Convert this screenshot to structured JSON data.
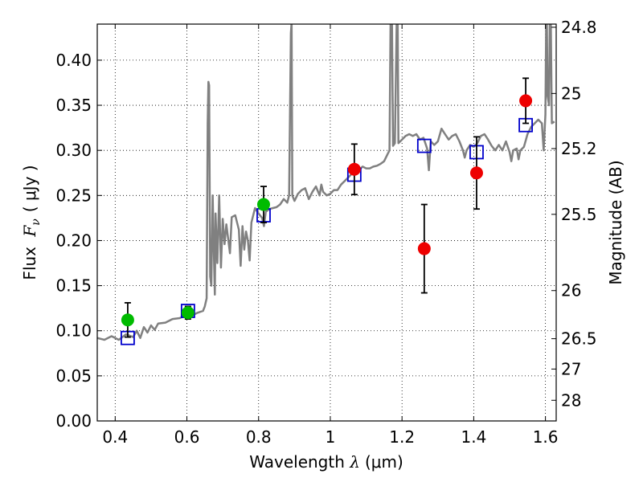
{
  "chart_data": {
    "type": "scatter",
    "xlabel": "Wavelength  λ (μm)",
    "ylabel": "Flux  Fν  ( μJy )",
    "ylabel_parts": {
      "prefix": "Flux ",
      "var_main": "F",
      "var_sub": "ν",
      "units": "( μJy )"
    },
    "xlabel_parts": {
      "prefix": "Wavelength  ",
      "var": "λ",
      "units": "(μm)"
    },
    "y2label": "Magnitude (AB)",
    "xlim": [
      0.35,
      1.63
    ],
    "ylim": [
      0.0,
      0.44
    ],
    "grid": true,
    "x_ticks": [
      {
        "value": 0.4,
        "label": "0.4"
      },
      {
        "value": 0.6,
        "label": "0.6"
      },
      {
        "value": 0.8,
        "label": "0.8"
      },
      {
        "value": 1.0,
        "label": "1"
      },
      {
        "value": 1.2,
        "label": "1.2"
      },
      {
        "value": 1.4,
        "label": "1.4"
      },
      {
        "value": 1.6,
        "label": "1.6"
      }
    ],
    "y_ticks": [
      {
        "value": 0.0,
        "label": "0.00"
      },
      {
        "value": 0.05,
        "label": "0.05"
      },
      {
        "value": 0.1,
        "label": "0.10"
      },
      {
        "value": 0.15,
        "label": "0.15"
      },
      {
        "value": 0.2,
        "label": "0.20"
      },
      {
        "value": 0.25,
        "label": "0.25"
      },
      {
        "value": 0.3,
        "label": "0.30"
      },
      {
        "value": 0.35,
        "label": "0.35"
      },
      {
        "value": 0.4,
        "label": "0.40"
      }
    ],
    "y2_ticks": [
      {
        "mag": 24.8,
        "label": "24.8"
      },
      {
        "mag": 25.0,
        "label": "25"
      },
      {
        "mag": 25.2,
        "label": "25.2"
      },
      {
        "mag": 25.5,
        "label": "25.5"
      },
      {
        "mag": 26.0,
        "label": "26"
      },
      {
        "mag": 26.5,
        "label": "26.5"
      },
      {
        "mag": 27.0,
        "label": "27"
      },
      {
        "mag": 28.0,
        "label": "28"
      }
    ],
    "series": [
      {
        "kind": "line",
        "color": "#808080",
        "points": [
          [
            0.35,
            0.092
          ],
          [
            0.37,
            0.09
          ],
          [
            0.39,
            0.094
          ],
          [
            0.41,
            0.09
          ],
          [
            0.43,
            0.096
          ],
          [
            0.45,
            0.093
          ],
          [
            0.46,
            0.1
          ],
          [
            0.47,
            0.092
          ],
          [
            0.48,
            0.104
          ],
          [
            0.49,
            0.098
          ],
          [
            0.5,
            0.106
          ],
          [
            0.51,
            0.101
          ],
          [
            0.52,
            0.108
          ],
          [
            0.54,
            0.109
          ],
          [
            0.56,
            0.113
          ],
          [
            0.58,
            0.114
          ],
          [
            0.6,
            0.118
          ],
          [
            0.62,
            0.118
          ],
          [
            0.63,
            0.12
          ],
          [
            0.645,
            0.122
          ],
          [
            0.65,
            0.127
          ],
          [
            0.655,
            0.136
          ],
          [
            0.658,
            0.33
          ],
          [
            0.66,
            0.376
          ],
          [
            0.662,
            0.372
          ],
          [
            0.665,
            0.16
          ],
          [
            0.668,
            0.15
          ],
          [
            0.672,
            0.25
          ],
          [
            0.675,
            0.19
          ],
          [
            0.678,
            0.14
          ],
          [
            0.68,
            0.23
          ],
          [
            0.685,
            0.175
          ],
          [
            0.69,
            0.25
          ],
          [
            0.695,
            0.17
          ],
          [
            0.7,
            0.224
          ],
          [
            0.705,
            0.196
          ],
          [
            0.71,
            0.218
          ],
          [
            0.72,
            0.186
          ],
          [
            0.725,
            0.226
          ],
          [
            0.735,
            0.228
          ],
          [
            0.745,
            0.212
          ],
          [
            0.75,
            0.172
          ],
          [
            0.755,
            0.216
          ],
          [
            0.76,
            0.19
          ],
          [
            0.765,
            0.21
          ],
          [
            0.77,
            0.2
          ],
          [
            0.775,
            0.178
          ],
          [
            0.78,
            0.22
          ],
          [
            0.79,
            0.236
          ],
          [
            0.8,
            0.23
          ],
          [
            0.81,
            0.225
          ],
          [
            0.815,
            0.216
          ],
          [
            0.82,
            0.232
          ],
          [
            0.83,
            0.235
          ],
          [
            0.84,
            0.236
          ],
          [
            0.85,
            0.237
          ],
          [
            0.86,
            0.24
          ],
          [
            0.87,
            0.246
          ],
          [
            0.88,
            0.242
          ],
          [
            0.885,
            0.25
          ],
          [
            0.89,
            0.43
          ],
          [
            0.892,
            0.442
          ],
          [
            0.894,
            0.25
          ],
          [
            0.9,
            0.244
          ],
          [
            0.91,
            0.252
          ],
          [
            0.92,
            0.256
          ],
          [
            0.93,
            0.258
          ],
          [
            0.94,
            0.246
          ],
          [
            0.95,
            0.254
          ],
          [
            0.96,
            0.26
          ],
          [
            0.97,
            0.25
          ],
          [
            0.975,
            0.262
          ],
          [
            0.98,
            0.254
          ],
          [
            0.99,
            0.25
          ],
          [
            1.0,
            0.252
          ],
          [
            1.01,
            0.256
          ],
          [
            1.02,
            0.256
          ],
          [
            1.03,
            0.262
          ],
          [
            1.04,
            0.266
          ],
          [
            1.05,
            0.27
          ],
          [
            1.06,
            0.274
          ],
          [
            1.07,
            0.276
          ],
          [
            1.08,
            0.278
          ],
          [
            1.09,
            0.282
          ],
          [
            1.1,
            0.28
          ],
          [
            1.11,
            0.28
          ],
          [
            1.12,
            0.282
          ],
          [
            1.13,
            0.283
          ],
          [
            1.14,
            0.285
          ],
          [
            1.15,
            0.288
          ],
          [
            1.16,
            0.296
          ],
          [
            1.165,
            0.3
          ],
          [
            1.168,
            0.44
          ],
          [
            1.172,
            0.44
          ],
          [
            1.175,
            0.305
          ],
          [
            1.18,
            0.308
          ],
          [
            1.185,
            0.44
          ],
          [
            1.188,
            0.44
          ],
          [
            1.19,
            0.308
          ],
          [
            1.2,
            0.312
          ],
          [
            1.21,
            0.316
          ],
          [
            1.22,
            0.318
          ],
          [
            1.23,
            0.316
          ],
          [
            1.24,
            0.318
          ],
          [
            1.25,
            0.312
          ],
          [
            1.26,
            0.314
          ],
          [
            1.27,
            0.302
          ],
          [
            1.275,
            0.278
          ],
          [
            1.28,
            0.31
          ],
          [
            1.29,
            0.306
          ],
          [
            1.3,
            0.31
          ],
          [
            1.31,
            0.324
          ],
          [
            1.32,
            0.318
          ],
          [
            1.33,
            0.312
          ],
          [
            1.34,
            0.316
          ],
          [
            1.35,
            0.318
          ],
          [
            1.36,
            0.31
          ],
          [
            1.37,
            0.3
          ],
          [
            1.375,
            0.292
          ],
          [
            1.38,
            0.3
          ],
          [
            1.39,
            0.306
          ],
          [
            1.4,
            0.304
          ],
          [
            1.41,
            0.308
          ],
          [
            1.42,
            0.316
          ],
          [
            1.43,
            0.318
          ],
          [
            1.44,
            0.312
          ],
          [
            1.45,
            0.305
          ],
          [
            1.46,
            0.3
          ],
          [
            1.47,
            0.306
          ],
          [
            1.48,
            0.3
          ],
          [
            1.49,
            0.31
          ],
          [
            1.5,
            0.298
          ],
          [
            1.505,
            0.288
          ],
          [
            1.51,
            0.3
          ],
          [
            1.52,
            0.302
          ],
          [
            1.525,
            0.29
          ],
          [
            1.53,
            0.3
          ],
          [
            1.54,
            0.304
          ],
          [
            1.55,
            0.318
          ],
          [
            1.56,
            0.326
          ],
          [
            1.57,
            0.33
          ],
          [
            1.58,
            0.334
          ],
          [
            1.59,
            0.33
          ],
          [
            1.595,
            0.3
          ],
          [
            1.6,
            0.34
          ],
          [
            1.602,
            0.44
          ],
          [
            1.604,
            0.44
          ],
          [
            1.606,
            0.36
          ],
          [
            1.61,
            0.35
          ],
          [
            1.612,
            0.44
          ],
          [
            1.615,
            0.44
          ],
          [
            1.618,
            0.33
          ],
          [
            1.625,
            0.332
          ]
        ]
      },
      {
        "kind": "open-square",
        "color": "#0000cc",
        "points": [
          [
            0.435,
            0.092
          ],
          [
            0.603,
            0.122
          ],
          [
            0.814,
            0.228
          ],
          [
            1.067,
            0.273
          ],
          [
            1.262,
            0.305
          ],
          [
            1.408,
            0.298
          ],
          [
            1.545,
            0.328
          ]
        ]
      },
      {
        "kind": "filled-circle",
        "color": "#00bb00",
        "points": [
          {
            "x": 0.435,
            "y": 0.112,
            "err": 0.019
          },
          {
            "x": 0.603,
            "y": 0.12,
            "err": 0.007
          },
          {
            "x": 0.814,
            "y": 0.24,
            "err": 0.02
          }
        ]
      },
      {
        "kind": "filled-circle",
        "color": "#ee0000",
        "points": [
          {
            "x": 1.067,
            "y": 0.279,
            "err": 0.028
          },
          {
            "x": 1.262,
            "y": 0.191,
            "err": 0.049
          },
          {
            "x": 1.408,
            "y": 0.275,
            "err": 0.04
          },
          {
            "x": 1.545,
            "y": 0.355,
            "err": 0.025
          }
        ]
      }
    ]
  }
}
